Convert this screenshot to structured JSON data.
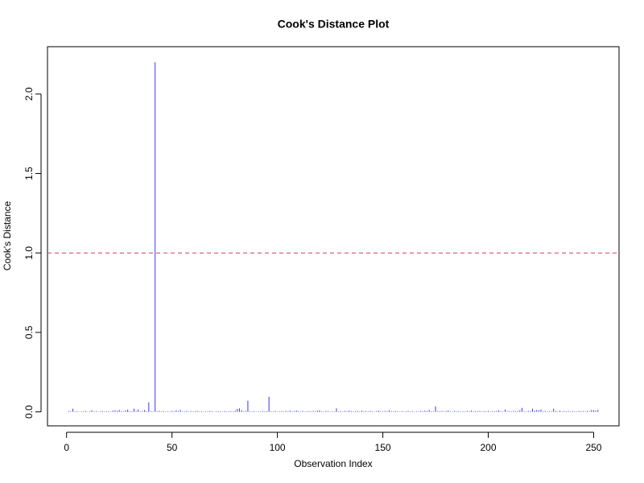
{
  "chart_data": {
    "type": "spike",
    "title": "Cook's Distance Plot",
    "xlabel": "Observation Index",
    "ylabel": "Cook's Distance",
    "color": "#3333ff",
    "threshold": 1,
    "threshold_color": "#d04050",
    "xlim": [
      -9.04,
      262.04
    ],
    "ylim": [
      -0.088,
      2.298
    ],
    "xticks": [
      0,
      50,
      100,
      150,
      200,
      250
    ],
    "yticks": [
      {
        "value": 0,
        "label": "0.0"
      },
      {
        "value": 0.5,
        "label": "0.5"
      },
      {
        "value": 1,
        "label": "1.0"
      },
      {
        "value": 1.5,
        "label": "1.5"
      },
      {
        "value": 2,
        "label": "2.0"
      }
    ],
    "x": [
      1,
      2,
      3,
      4,
      5,
      6,
      7,
      8,
      9,
      10,
      11,
      12,
      13,
      14,
      15,
      16,
      17,
      18,
      19,
      20,
      21,
      22,
      23,
      24,
      25,
      26,
      27,
      28,
      29,
      30,
      31,
      32,
      33,
      34,
      35,
      36,
      37,
      38,
      39,
      40,
      41,
      42,
      43,
      44,
      45,
      46,
      47,
      48,
      49,
      50,
      51,
      52,
      53,
      54,
      55,
      56,
      57,
      58,
      59,
      60,
      61,
      62,
      63,
      64,
      65,
      66,
      67,
      68,
      69,
      70,
      71,
      72,
      73,
      74,
      75,
      76,
      77,
      78,
      79,
      80,
      81,
      82,
      83,
      84,
      85,
      86,
      87,
      88,
      89,
      90,
      91,
      92,
      93,
      94,
      95,
      96,
      97,
      98,
      99,
      100,
      101,
      102,
      103,
      104,
      105,
      106,
      107,
      108,
      109,
      110,
      111,
      112,
      113,
      114,
      115,
      116,
      117,
      118,
      119,
      120,
      121,
      122,
      123,
      124,
      125,
      126,
      127,
      128,
      129,
      130,
      131,
      132,
      133,
      134,
      135,
      136,
      137,
      138,
      139,
      140,
      141,
      142,
      143,
      144,
      145,
      146,
      147,
      148,
      149,
      150,
      151,
      152,
      153,
      154,
      155,
      156,
      157,
      158,
      159,
      160,
      161,
      162,
      163,
      164,
      165,
      166,
      167,
      168,
      169,
      170,
      171,
      172,
      173,
      174,
      175,
      176,
      177,
      178,
      179,
      180,
      181,
      182,
      183,
      184,
      185,
      186,
      187,
      188,
      189,
      190,
      191,
      192,
      193,
      194,
      195,
      196,
      197,
      198,
      199,
      200,
      201,
      202,
      203,
      204,
      205,
      206,
      207,
      208,
      209,
      210,
      211,
      212,
      213,
      214,
      215,
      216,
      217,
      218,
      219,
      220,
      221,
      222,
      223,
      224,
      225,
      226,
      227,
      228,
      229,
      230,
      231,
      232,
      233,
      234,
      235,
      236,
      237,
      238,
      239,
      240,
      241,
      242,
      243,
      244,
      245,
      246,
      247,
      248,
      249,
      250,
      251,
      252
    ],
    "values": [
      0.006,
      0.004,
      0.02,
      0.003,
      0.005,
      0.002,
      0.004,
      0.003,
      0.006,
      0.002,
      0.004,
      0.01,
      0.003,
      0.005,
      0.002,
      0.004,
      0.006,
      0.003,
      0.005,
      0.004,
      0.003,
      0.008,
      0.01,
      0.006,
      0.012,
      0.004,
      0.003,
      0.009,
      0.014,
      0.005,
      0.004,
      0.02,
      0.006,
      0.015,
      0.003,
      0.005,
      0.012,
      0.004,
      0.06,
      0.005,
      0.003,
      2.2,
      0.004,
      0.006,
      0.003,
      0.005,
      0.002,
      0.004,
      0.003,
      0.006,
      0.004,
      0.01,
      0.005,
      0.012,
      0.003,
      0.004,
      0.006,
      0.002,
      0.005,
      0.003,
      0.004,
      0.006,
      0.003,
      0.005,
      0.002,
      0.004,
      0.003,
      0.006,
      0.004,
      0.002,
      0.003,
      0.005,
      0.004,
      0.002,
      0.006,
      0.003,
      0.004,
      0.005,
      0.003,
      0.008,
      0.018,
      0.022,
      0.01,
      0.004,
      0.006,
      0.07,
      0.004,
      0.003,
      0.005,
      0.002,
      0.004,
      0.003,
      0.006,
      0.004,
      0.005,
      0.095,
      0.004,
      0.003,
      0.006,
      0.002,
      0.004,
      0.005,
      0.003,
      0.006,
      0.004,
      0.008,
      0.003,
      0.005,
      0.009,
      0.004,
      0.003,
      0.006,
      0.002,
      0.004,
      0.005,
      0.003,
      0.006,
      0.004,
      0.008,
      0.01,
      0.004,
      0.003,
      0.006,
      0.005,
      0.002,
      0.004,
      0.003,
      0.022,
      0.004,
      0.005,
      0.003,
      0.006,
      0.004,
      0.008,
      0.005,
      0.003,
      0.004,
      0.006,
      0.003,
      0.008,
      0.004,
      0.005,
      0.003,
      0.006,
      0.004,
      0.002,
      0.005,
      0.008,
      0.003,
      0.004,
      0.006,
      0.004,
      0.01,
      0.005,
      0.003,
      0.006,
      0.004,
      0.002,
      0.005,
      0.003,
      0.004,
      0.006,
      0.003,
      0.005,
      0.002,
      0.004,
      0.003,
      0.006,
      0.004,
      0.008,
      0.005,
      0.012,
      0.004,
      0.003,
      0.035,
      0.005,
      0.004,
      0.006,
      0.003,
      0.005,
      0.008,
      0.004,
      0.003,
      0.006,
      0.004,
      0.005,
      0.002,
      0.004,
      0.003,
      0.006,
      0.004,
      0.008,
      0.003,
      0.005,
      0.004,
      0.006,
      0.003,
      0.005,
      0.004,
      0.006,
      0.003,
      0.005,
      0.004,
      0.006,
      0.01,
      0.004,
      0.003,
      0.014,
      0.005,
      0.004,
      0.003,
      0.006,
      0.004,
      0.005,
      0.01,
      0.025,
      0.004,
      0.003,
      0.006,
      0.005,
      0.02,
      0.008,
      0.012,
      0.01,
      0.015,
      0.004,
      0.006,
      0.003,
      0.005,
      0.004,
      0.02,
      0.006,
      0.004,
      0.008,
      0.003,
      0.005,
      0.004,
      0.006,
      0.003,
      0.005,
      0.004,
      0.003,
      0.006,
      0.004,
      0.005,
      0.003,
      0.006,
      0.004,
      0.012,
      0.01,
      0.008,
      0.012
    ]
  }
}
